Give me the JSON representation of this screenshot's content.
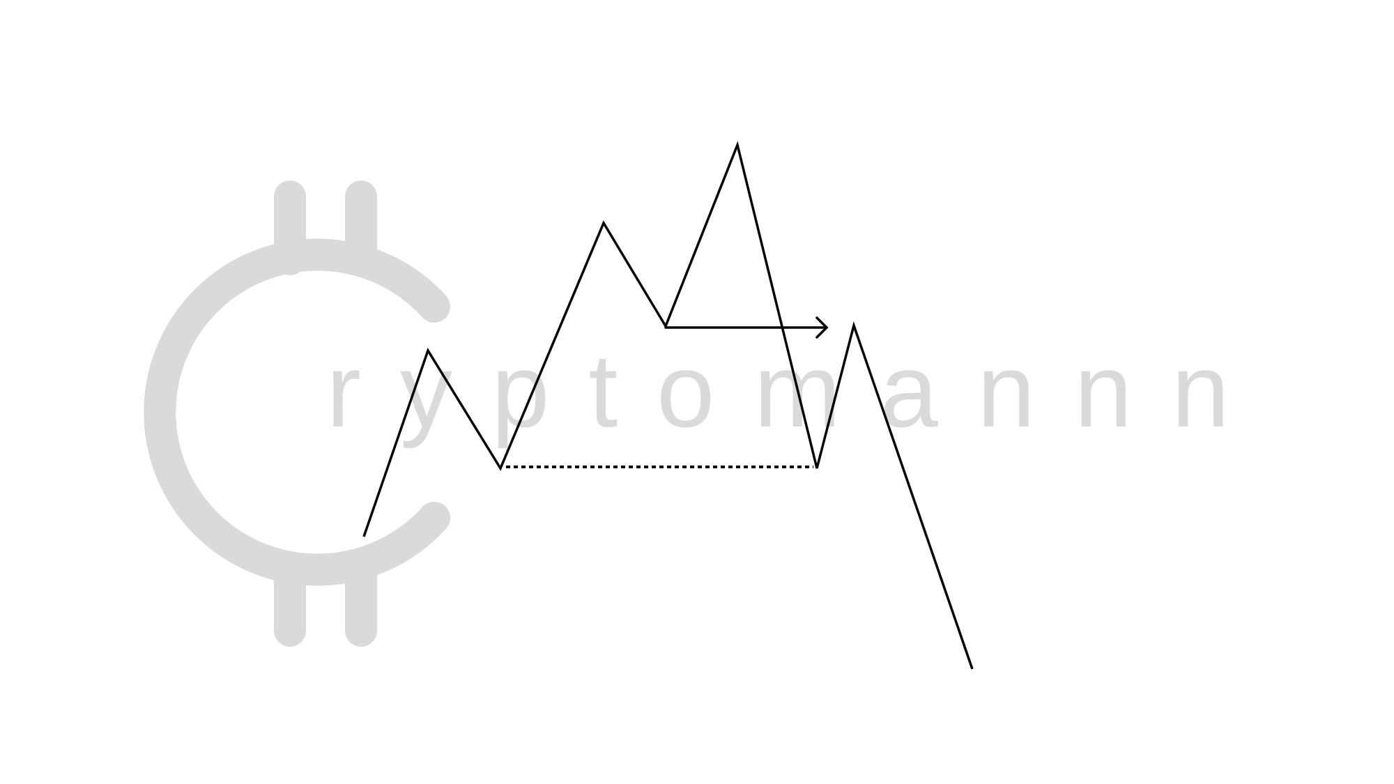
{
  "watermark": {
    "wordmark": "Cryptomannn",
    "letters_after_c": "ryptomannn",
    "color": "#dadada",
    "icon": "coin-c-icon"
  },
  "diagram": {
    "line_color": "#000000",
    "neckline_style": "dotted",
    "arrow_icon": "arrow-right-icon",
    "background": "#ffffff"
  }
}
